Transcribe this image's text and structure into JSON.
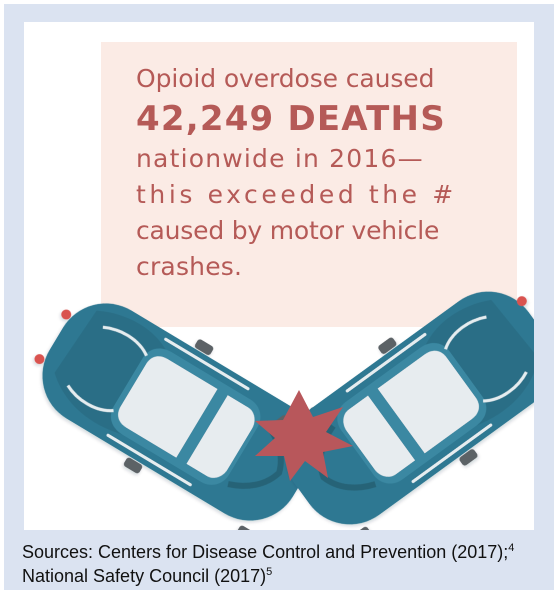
{
  "headline": {
    "line1": "Opioid overdose caused",
    "line2": "42,249 DEATHS",
    "line3": "nationwide in 2016—",
    "line4": "this exceeded the #",
    "line5": "caused by motor vehicle",
    "line6": "crashes."
  },
  "sources": {
    "part1": "Sources: Centers for Disease Control and Prevention (2017);",
    "ref1": "4",
    "part2": " National Safety Council (2017)",
    "ref2": "5"
  },
  "colors": {
    "frame": "#dbe3f1",
    "note_background": "#fbebe5",
    "headline_text": "#b55a57",
    "car_body": "#2f7892",
    "car_windows": "#e7ecef",
    "crash_star": "#b8575b"
  },
  "icons": [
    "left-car-icon",
    "right-car-icon",
    "crash-burst-icon"
  ]
}
